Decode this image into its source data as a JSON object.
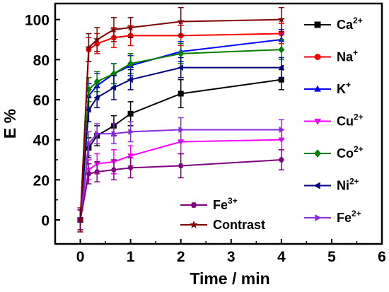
{
  "chart_data": {
    "type": "line",
    "xlabel": "Time / min",
    "ylabel": "E %",
    "xlim": [
      -0.5,
      6
    ],
    "ylim": [
      -12,
      108
    ],
    "xticks": [
      0,
      1,
      2,
      3,
      4,
      5,
      6
    ],
    "yticks": [
      0,
      20,
      40,
      60,
      80,
      100
    ],
    "x": [
      0,
      0.167,
      0.333,
      0.667,
      1,
      2,
      4
    ],
    "series": [
      {
        "name": "Ca",
        "sup": "2+",
        "color": "#000000",
        "marker": "square",
        "values": [
          0,
          36,
          42,
          47,
          53,
          63,
          70
        ],
        "errors": [
          5,
          5,
          5,
          5,
          6,
          7,
          5
        ]
      },
      {
        "name": "Na",
        "sup": "+",
        "color": "#ff0000",
        "marker": "circle",
        "values": [
          0,
          85,
          88,
          91,
          92,
          92,
          93
        ],
        "errors": [
          5,
          6,
          5,
          5,
          5,
          5,
          5
        ]
      },
      {
        "name": "K",
        "sup": "+",
        "color": "#0000ff",
        "marker": "triangle-up",
        "values": [
          0,
          62,
          67,
          73,
          77,
          84,
          90
        ],
        "errors": [
          5,
          6,
          6,
          5,
          5,
          5,
          5
        ]
      },
      {
        "name": "Cu",
        "sup": "2+",
        "color": "#ff00ff",
        "marker": "triangle-down",
        "values": [
          0,
          25,
          28,
          29,
          32,
          39,
          40
        ],
        "errors": [
          5,
          5,
          5,
          6,
          5,
          6,
          5
        ]
      },
      {
        "name": "Co",
        "sup": "2+",
        "color": "#008000",
        "marker": "diamond",
        "values": [
          0,
          65,
          69,
          73,
          78,
          83,
          85
        ],
        "errors": [
          5,
          6,
          5,
          5,
          5,
          5,
          5
        ]
      },
      {
        "name": "Ni",
        "sup": "2+",
        "color": "#000080",
        "marker": "triangle-left",
        "values": [
          0,
          55,
          61,
          66,
          70,
          76,
          76
        ],
        "errors": [
          5,
          6,
          5,
          6,
          5,
          5,
          5
        ]
      },
      {
        "name": "Fe",
        "sup": "2+",
        "color": "#8a2be2",
        "marker": "triangle-right",
        "values": [
          0,
          38,
          43,
          43,
          44,
          45,
          45
        ],
        "errors": [
          5,
          6,
          5,
          5,
          5,
          6,
          5
        ]
      },
      {
        "name": "Fe",
        "sup": "3+",
        "color": "#800080",
        "marker": "hexagon",
        "values": [
          0,
          23,
          24,
          25,
          26,
          27,
          30
        ],
        "errors": [
          5,
          5,
          5,
          5,
          5,
          6,
          5
        ]
      },
      {
        "name": "Contrast",
        "sup": "",
        "color": "#800000",
        "marker": "star",
        "values": [
          0,
          86,
          90,
          95,
          96,
          99,
          100
        ],
        "errors": [
          6,
          7,
          6,
          6,
          5,
          7,
          6
        ]
      }
    ],
    "legend": {
      "right_column": [
        0,
        1,
        2,
        3,
        4,
        5,
        6
      ],
      "left_column": [
        7,
        8
      ]
    }
  }
}
